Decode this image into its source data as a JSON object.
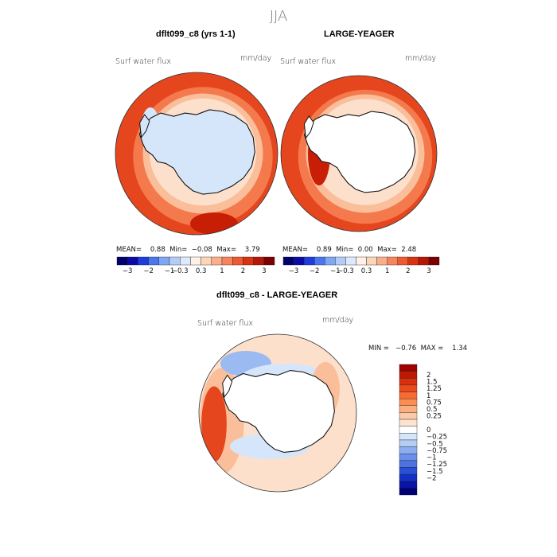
{
  "season": "JJA",
  "panels": [
    {
      "title": "dflt099_c8 (yrs 1-1)",
      "variable": "Surf water flux",
      "units": "mm/day",
      "stats": {
        "mean_label": "MEAN=",
        "mean": "0.88",
        "min_label": "Min=",
        "min": "−0.08",
        "max_label": "Max=",
        "max": "3.79"
      }
    },
    {
      "title": "LARGE-YEAGER",
      "variable": "Surf water flux",
      "units": "mm/day",
      "stats": {
        "mean_label": "MEAN=",
        "mean": "0.89",
        "min_label": "Min=",
        "min": "0.00",
        "max_label": "Max=",
        "max": "2.48"
      }
    },
    {
      "title": "dflt099_c8 - LARGE-YEAGER",
      "variable": "Surf water flux",
      "units": "mm/day",
      "minmax_text": "MIN =   −0.76  MAX =    1.34"
    }
  ],
  "top_colorbar": {
    "colors": [
      "#00006e",
      "#0a0aa8",
      "#1e3ce0",
      "#4a76f0",
      "#7ea8f6",
      "#b4cdf8",
      "#dde9fc",
      "#fff1e6",
      "#fdd5b8",
      "#fcae8a",
      "#f8845c",
      "#ef5a30",
      "#dc3210",
      "#b81606",
      "#7c0000"
    ],
    "tick_labels": [
      "−3",
      "−2",
      "−1",
      "−0.3",
      "0.3",
      "1",
      "2",
      "3"
    ]
  },
  "diff_colorbar": {
    "colors_top_to_bottom": [
      "#a00000",
      "#bd1a06",
      "#d8300e",
      "#ec4a1c",
      "#f86b32",
      "#fb8c52",
      "#fcae80",
      "#fdcaa8",
      "#fde4d0",
      "#ffffff",
      "#d6e6fa",
      "#b4cdf6",
      "#8caef0",
      "#6a90ec",
      "#4c72e4",
      "#2a50d8",
      "#1230c4",
      "#0614a8",
      "#000078"
    ],
    "labels_top_to_bottom": [
      "2",
      "1.5",
      "1.25",
      "1",
      "0.75",
      "0.5",
      "0.25",
      "0",
      "−0.25",
      "−0.5",
      "−0.75",
      "−1",
      "−1.25",
      "−1.5",
      "−2"
    ]
  },
  "map_colors": {
    "ocean_dark": "#c81e05",
    "ocean_mid": "#e6461e",
    "ocean_light": "#f47a4e",
    "ocean_pale": "#fbbe9a",
    "ocean_paler": "#fde0cc",
    "ice_blue": "#d6e6fa",
    "diff_blue": "#9cbaf2",
    "land": "#ffffff"
  }
}
